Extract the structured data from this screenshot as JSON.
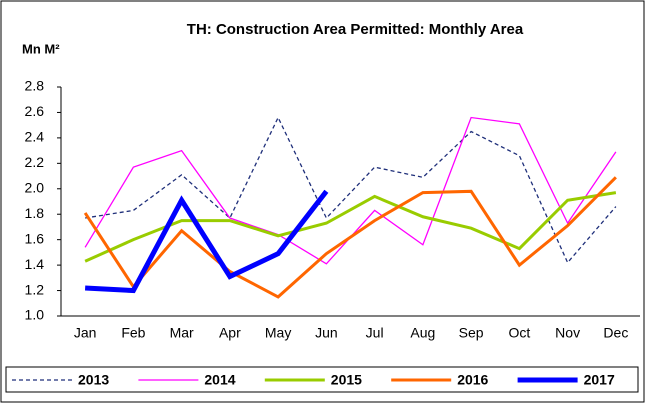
{
  "chart_data": {
    "type": "line",
    "title": "TH: Construction Area Permitted: Monthly Area",
    "y_label": "Mn M²",
    "categories": [
      "Jan",
      "Feb",
      "Mar",
      "Apr",
      "May",
      "Jun",
      "Jul",
      "Aug",
      "Sep",
      "Oct",
      "Nov",
      "Dec"
    ],
    "ylim": [
      1.0,
      2.8
    ],
    "yticks": [
      {
        "value": 1.0,
        "label": "1.0"
      },
      1.2,
      1.4,
      1.6,
      1.8,
      {
        "value": 2.0,
        "label": "2.0"
      },
      2.2,
      2.4,
      2.6,
      2.8
    ],
    "grid": false,
    "legend": "bottom",
    "series": [
      {
        "name": "2013",
        "color": "#1f2f7a",
        "dash": true,
        "width": 1.3,
        "values": [
          1.77,
          1.83,
          2.11,
          1.77,
          2.56,
          1.77,
          2.17,
          2.09,
          2.45,
          2.26,
          1.42,
          1.86
        ]
      },
      {
        "name": "2014",
        "color": "#ff00ff",
        "dash": false,
        "width": 1.3,
        "values": [
          1.54,
          2.17,
          2.3,
          1.77,
          1.64,
          1.41,
          1.83,
          1.56,
          2.56,
          2.51,
          1.73,
          2.29
        ]
      },
      {
        "name": "2015",
        "color": "#99cc00",
        "dash": false,
        "width": 3,
        "values": [
          1.43,
          1.6,
          1.75,
          1.75,
          1.63,
          1.73,
          1.94,
          1.78,
          1.69,
          1.53,
          1.91,
          1.97
        ]
      },
      {
        "name": "2016",
        "color": "#ff6600",
        "dash": false,
        "width": 3,
        "values": [
          1.81,
          1.23,
          1.67,
          1.35,
          1.15,
          1.49,
          1.75,
          1.97,
          1.98,
          1.4,
          1.71,
          2.09
        ]
      },
      {
        "name": "2017",
        "color": "#0000ff",
        "dash": false,
        "width": 5,
        "values": [
          1.22,
          1.2,
          1.91,
          1.31,
          1.49,
          1.98,
          null,
          null,
          null,
          null,
          null,
          null
        ]
      }
    ]
  }
}
